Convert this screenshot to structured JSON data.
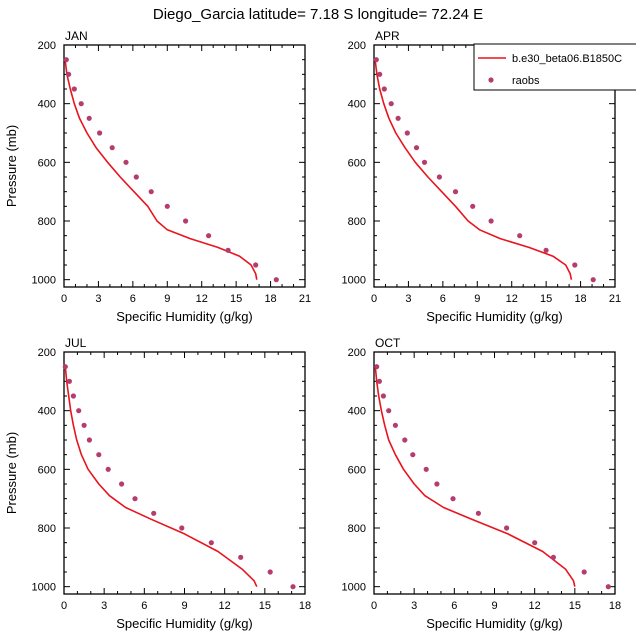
{
  "title": "Diego_Garcia  latitude= 7.18 S longitude= 72.24 E",
  "legend": {
    "model_label": "b.e30_beta06.B1850C",
    "obs_label": "raobs"
  },
  "colors": {
    "model_line": "#e8141e",
    "obs_marker": "#b43c6e"
  },
  "chart_data": [
    {
      "type": "line",
      "panel": "JAN",
      "xlabel": "Specific Humidity (g/kg)",
      "ylabel": "Pressure (mb)",
      "xlim": [
        0,
        21
      ],
      "ylim": [
        1025,
        200
      ],
      "xticks": [
        0,
        3,
        6,
        9,
        12,
        15,
        18,
        21
      ],
      "yticks": [
        200,
        400,
        600,
        800,
        1000
      ],
      "legend_position": "top-right",
      "series": [
        {
          "name": "b.e30_beta06.B1850C",
          "kind": "line",
          "x": [
            0.1,
            0.25,
            0.55,
            0.9,
            1.35,
            2.0,
            2.8,
            3.8,
            4.9,
            6.1,
            7.3,
            8.1,
            9.0,
            11.0,
            13.4,
            15.3,
            16.3,
            16.7,
            16.8
          ],
          "y": [
            250,
            300,
            350,
            400,
            450,
            500,
            550,
            600,
            650,
            700,
            750,
            800,
            830,
            860,
            890,
            920,
            950,
            980,
            1000
          ]
        },
        {
          "name": "raobs",
          "kind": "scatter",
          "x": [
            0.2,
            0.4,
            0.9,
            1.5,
            2.2,
            3.1,
            4.2,
            5.4,
            6.3,
            7.6,
            9.0,
            10.6,
            12.6,
            14.3,
            16.7,
            18.5
          ],
          "y": [
            250,
            300,
            350,
            400,
            450,
            500,
            550,
            600,
            650,
            700,
            750,
            800,
            850,
            900,
            950,
            1000
          ]
        }
      ]
    },
    {
      "type": "line",
      "panel": "APR",
      "xlabel": "Specific Humidity (g/kg)",
      "ylabel": "",
      "xlim": [
        0,
        21
      ],
      "ylim": [
        1025,
        200
      ],
      "xticks": [
        0,
        3,
        6,
        9,
        12,
        15,
        18,
        21
      ],
      "yticks": [
        200,
        400,
        600,
        800,
        1000
      ],
      "series": [
        {
          "name": "b.e30_beta06.B1850C",
          "kind": "line",
          "x": [
            0.1,
            0.25,
            0.5,
            0.85,
            1.3,
            1.9,
            2.7,
            3.6,
            4.7,
            5.9,
            7.1,
            8.2,
            9.2,
            11.0,
            13.5,
            15.6,
            16.7,
            17.1,
            17.2
          ],
          "y": [
            250,
            300,
            350,
            400,
            450,
            500,
            550,
            600,
            650,
            700,
            750,
            800,
            830,
            860,
            890,
            920,
            950,
            980,
            1000
          ]
        },
        {
          "name": "raobs",
          "kind": "scatter",
          "x": [
            0.2,
            0.5,
            0.9,
            1.5,
            2.1,
            2.9,
            3.7,
            4.4,
            5.7,
            7.1,
            8.6,
            10.2,
            12.7,
            15.0,
            17.5,
            19.1
          ],
          "y": [
            250,
            300,
            350,
            400,
            450,
            500,
            550,
            600,
            650,
            700,
            750,
            800,
            850,
            900,
            950,
            1000
          ]
        }
      ]
    },
    {
      "type": "line",
      "panel": "JUL",
      "xlabel": "Specific Humidity (g/kg)",
      "ylabel": "Pressure (mb)",
      "xlim": [
        0,
        18
      ],
      "ylim": [
        1025,
        200
      ],
      "xticks": [
        0,
        3,
        6,
        9,
        12,
        15,
        18
      ],
      "yticks": [
        200,
        400,
        600,
        800,
        1000
      ],
      "series": [
        {
          "name": "b.e30_beta06.B1850C",
          "kind": "line",
          "x": [
            0.1,
            0.2,
            0.35,
            0.5,
            0.7,
            0.95,
            1.3,
            1.8,
            2.6,
            3.4,
            4.6,
            6.5,
            9.0,
            11.5,
            13.3,
            14.2,
            14.4
          ],
          "y": [
            250,
            300,
            350,
            400,
            450,
            500,
            550,
            600,
            650,
            690,
            730,
            770,
            820,
            880,
            940,
            980,
            1000
          ]
        },
        {
          "name": "raobs",
          "kind": "scatter",
          "x": [
            0.1,
            0.4,
            0.7,
            1.1,
            1.5,
            1.9,
            2.6,
            3.3,
            4.3,
            5.3,
            6.7,
            8.8,
            11.0,
            13.2,
            15.4,
            17.1
          ],
          "y": [
            250,
            300,
            350,
            400,
            450,
            500,
            550,
            600,
            650,
            700,
            750,
            800,
            850,
            900,
            950,
            1000
          ]
        }
      ]
    },
    {
      "type": "line",
      "panel": "OCT",
      "xlabel": "Specific Humidity (g/kg)",
      "ylabel": "",
      "xlim": [
        0,
        18
      ],
      "ylim": [
        1025,
        200
      ],
      "xticks": [
        0,
        3,
        6,
        9,
        12,
        15,
        18
      ],
      "yticks": [
        200,
        400,
        600,
        800,
        1000
      ],
      "series": [
        {
          "name": "b.e30_beta06.B1850C",
          "kind": "line",
          "x": [
            0.1,
            0.2,
            0.35,
            0.55,
            0.8,
            1.1,
            1.6,
            2.2,
            3.0,
            3.8,
            5.2,
            7.3,
            10.0,
            12.6,
            14.3,
            14.9,
            15.0
          ],
          "y": [
            250,
            300,
            350,
            400,
            450,
            500,
            550,
            600,
            650,
            690,
            730,
            770,
            820,
            880,
            940,
            980,
            1000
          ]
        },
        {
          "name": "raobs",
          "kind": "scatter",
          "x": [
            0.2,
            0.4,
            0.7,
            1.1,
            1.6,
            2.3,
            2.9,
            3.9,
            4.7,
            5.9,
            7.8,
            9.9,
            12.0,
            13.4,
            15.7,
            17.5
          ],
          "y": [
            250,
            300,
            350,
            400,
            450,
            500,
            550,
            600,
            650,
            700,
            750,
            800,
            850,
            900,
            950,
            1000
          ]
        }
      ]
    }
  ]
}
